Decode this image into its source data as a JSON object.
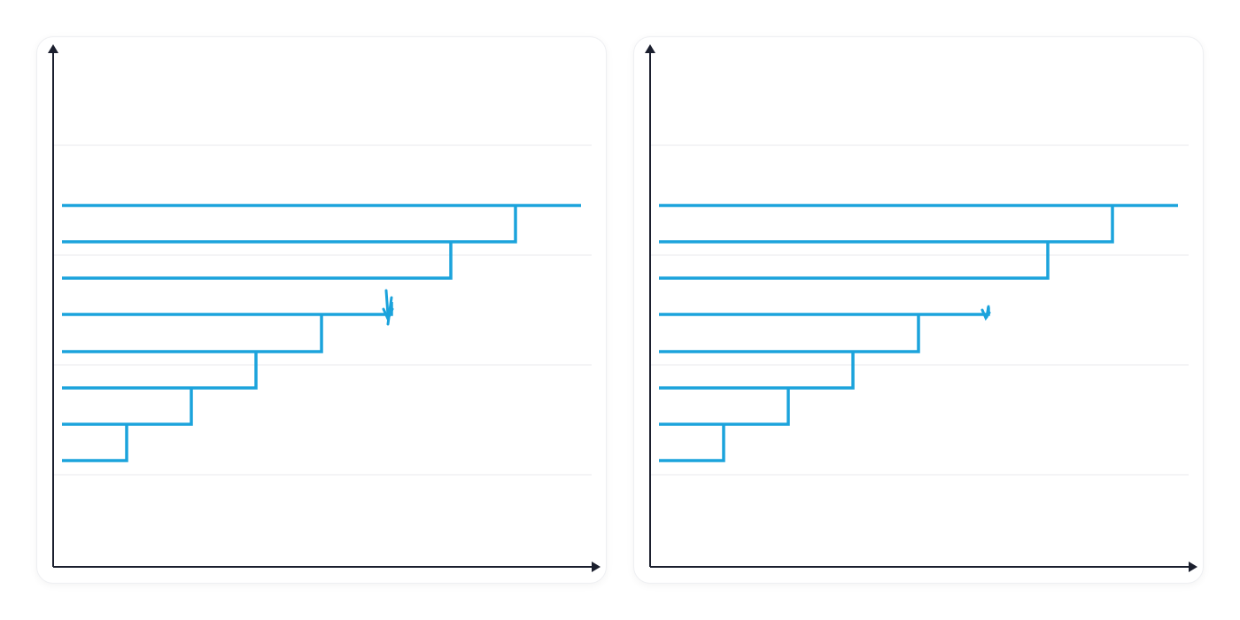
{
  "colors": {
    "line": "#1ba3dc",
    "axis": "#1b1f2e",
    "grid": "#e8e9ec",
    "card_border": "#eeeff2",
    "background": "#ffffff"
  },
  "panels": [
    {
      "id": "left",
      "grid_lines": 4,
      "axes": [
        "x-axis-arrow",
        "y-axis-arrow"
      ],
      "staircase": {
        "steps": 8,
        "levels": [
          1,
          2,
          3,
          4,
          5,
          6,
          7,
          8
        ],
        "top_level_extends_to_edge": true
      },
      "annotation": "double-down-arrow-icon"
    },
    {
      "id": "right",
      "grid_lines": 4,
      "axes": [
        "x-axis-arrow",
        "y-axis-arrow"
      ],
      "staircase": {
        "steps": 8,
        "levels": [
          1,
          2,
          3,
          4,
          5,
          6,
          7,
          8
        ],
        "top_level_extends_to_edge": true
      },
      "annotation": "down-arrow-icon"
    }
  ]
}
